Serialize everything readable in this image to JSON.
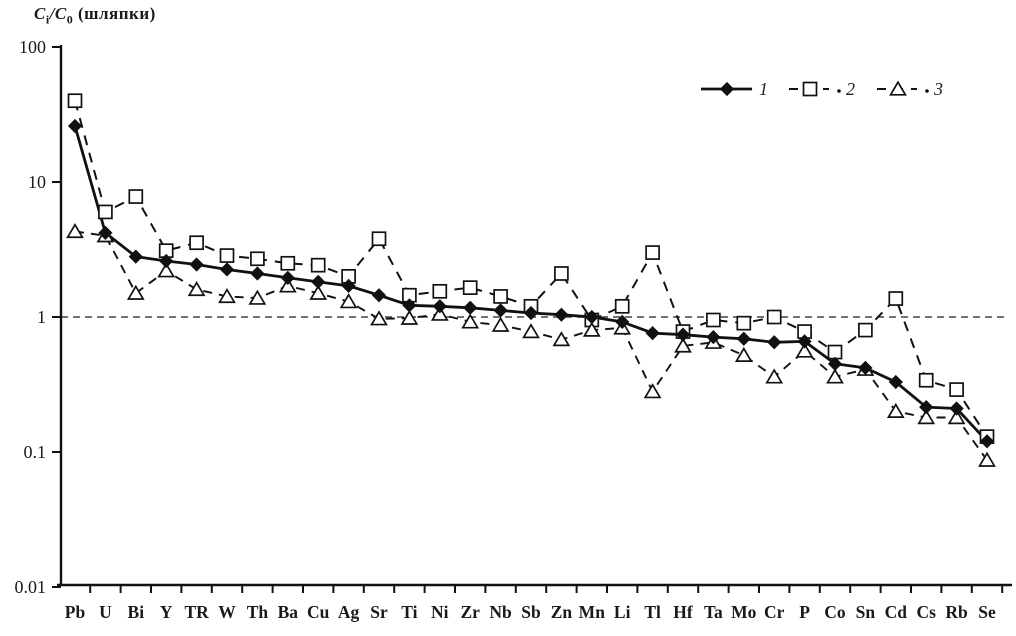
{
  "title": {
    "c1": "C",
    "sub1": "i",
    "c2": "/C",
    "sub2": "0",
    "suffix": " (шляпки)"
  },
  "colors": {
    "ink": "#111111",
    "background": "#ffffff",
    "ref_line": "#444444",
    "marker_fill_open": "#ffffff"
  },
  "y_axis": {
    "scale": "log",
    "tick_labels": [
      "100",
      "10",
      "1",
      "0.1",
      "0.01"
    ],
    "tick_values": [
      100,
      10,
      1,
      0.1,
      0.01
    ]
  },
  "chart_data": {
    "type": "line",
    "title": "C_i/C_0 (шляпки)",
    "xlabel": "",
    "ylabel": "C_i/C_0",
    "y_scale": "log",
    "ylim": [
      0.01,
      100
    ],
    "reference_line_y": 1,
    "grid": false,
    "legend_position": "top-right",
    "categories": [
      "Pb",
      "U",
      "Bi",
      "Y",
      "TR",
      "W",
      "Th",
      "Ba",
      "Cu",
      "Ag",
      "Sr",
      "Ti",
      "Ni",
      "Zr",
      "Nb",
      "Sb",
      "Zn",
      "Mn",
      "Li",
      "Tl",
      "Hf",
      "Ta",
      "Mo",
      "Cr",
      "P",
      "Co",
      "Sn",
      "Cd",
      "Cs",
      "Rb",
      "Se"
    ],
    "series": [
      {
        "name": "1",
        "marker": "diamond-filled",
        "line_style": "solid",
        "values": [
          26,
          4.2,
          2.8,
          2.6,
          2.45,
          2.25,
          2.1,
          1.95,
          1.82,
          1.7,
          1.45,
          1.22,
          1.2,
          1.17,
          1.12,
          1.07,
          1.04,
          1.0,
          0.92,
          0.76,
          0.74,
          0.71,
          0.69,
          0.65,
          0.66,
          0.45,
          0.42,
          0.33,
          0.215,
          0.21,
          0.12
        ]
      },
      {
        "name": "2",
        "marker": "square-open",
        "line_style": "dashed",
        "values": [
          40,
          6,
          7.8,
          3.1,
          3.55,
          2.85,
          2.7,
          2.5,
          2.42,
          2.0,
          3.8,
          1.45,
          1.55,
          1.65,
          1.42,
          1.2,
          2.1,
          0.95,
          1.2,
          3.0,
          0.78,
          0.95,
          0.9,
          1.0,
          0.78,
          0.55,
          0.8,
          1.37,
          0.34,
          0.29,
          0.13
        ]
      },
      {
        "name": "3",
        "marker": "triangle-open",
        "line_style": "dashed",
        "values": [
          4.3,
          4.0,
          1.5,
          2.2,
          1.6,
          1.42,
          1.38,
          1.7,
          1.5,
          1.3,
          0.97,
          0.98,
          1.05,
          0.92,
          0.87,
          0.78,
          0.68,
          0.8,
          0.83,
          0.28,
          0.61,
          0.65,
          0.52,
          0.36,
          0.56,
          0.36,
          0.41,
          0.2,
          0.18,
          0.18,
          0.087
        ]
      }
    ],
    "legend": [
      "1",
      "2",
      "3"
    ]
  }
}
